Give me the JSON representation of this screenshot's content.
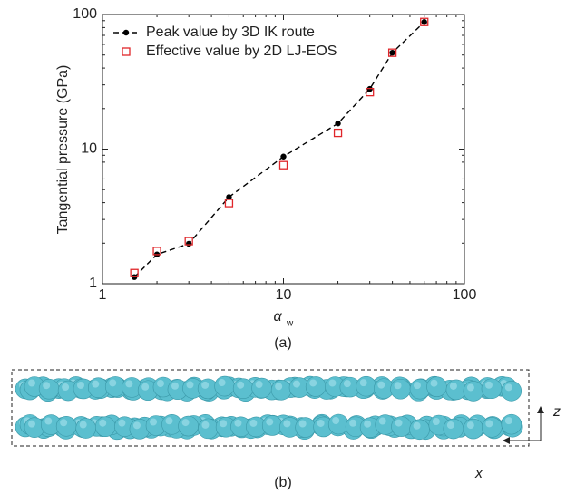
{
  "chart_data": {
    "type": "line",
    "xlabel": "α",
    "xlabel_subscript": "w",
    "ylabel": "Tangential pressure (GPa)",
    "caption": "(a)",
    "x": [
      1.5,
      2,
      3,
      5,
      10,
      20,
      30,
      40,
      60
    ],
    "series": [
      {
        "name": "Peak value by 3D IK route",
        "color": "#000000",
        "marker": "circle",
        "linestyle": "dashed",
        "values": [
          1.12,
          1.65,
          1.98,
          4.4,
          8.8,
          15.5,
          28,
          52,
          88
        ]
      },
      {
        "name": "Effective value by 2D LJ-EOS",
        "color": "#e0262a",
        "marker": "square",
        "linestyle": "none",
        "values": [
          1.2,
          1.75,
          2.07,
          3.97,
          7.6,
          13.2,
          26.5,
          52,
          88
        ]
      }
    ],
    "xscale": "log",
    "yscale": "log",
    "xlim": [
      1,
      100
    ],
    "ylim": [
      1,
      100
    ],
    "xticks": [
      1,
      10,
      100
    ],
    "yticks": [
      1,
      10,
      100
    ],
    "legend": "upper left"
  },
  "figure_b": {
    "caption": "(b)",
    "axis_vertical": "z",
    "axis_horizontal": "x"
  }
}
